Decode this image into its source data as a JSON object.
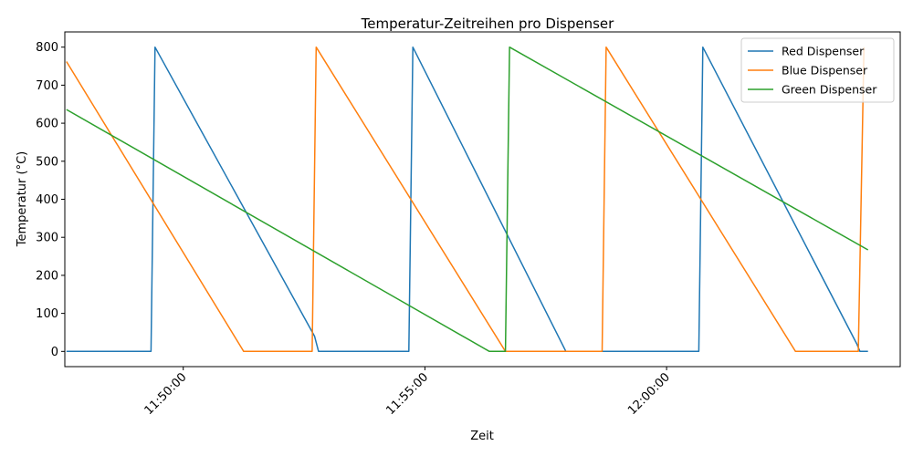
{
  "chart_data": {
    "type": "line",
    "title": "Temperatur-Zeitreihen pro Dispenser",
    "xlabel": "Zeit",
    "ylabel": "Temperatur (°C)",
    "xlim": [
      "11:47:33",
      "12:04:50"
    ],
    "ylim": [
      -40,
      840
    ],
    "x_ticks": [
      "11:50:00",
      "11:55:00",
      "12:00:00"
    ],
    "y_ticks": [
      0,
      100,
      200,
      300,
      400,
      500,
      600,
      700,
      800
    ],
    "grid": false,
    "legend_position": "top-right",
    "series": [
      {
        "name": "Red Dispenser",
        "color": "#1f77b4",
        "points": [
          [
            "11:47:35",
            0
          ],
          [
            "11:49:20",
            0
          ],
          [
            "11:49:25",
            800
          ],
          [
            "11:52:43",
            40
          ],
          [
            "11:52:48",
            0
          ],
          [
            "11:54:40",
            0
          ],
          [
            "11:54:45",
            800
          ],
          [
            "11:57:55",
            0
          ],
          [
            "12:00:40",
            0
          ],
          [
            "12:00:45",
            800
          ],
          [
            "12:03:56",
            20
          ],
          [
            "12:04:00",
            0
          ],
          [
            "12:04:10",
            0
          ]
        ]
      },
      {
        "name": "Blue Dispenser",
        "color": "#ff7f0e",
        "points": [
          [
            "11:47:35",
            762
          ],
          [
            "11:51:15",
            0
          ],
          [
            "11:52:40",
            0
          ],
          [
            "11:52:45",
            800
          ],
          [
            "11:56:40",
            0
          ],
          [
            "11:58:40",
            0
          ],
          [
            "11:58:45",
            800
          ],
          [
            "12:02:40",
            0
          ],
          [
            "12:03:58",
            0
          ],
          [
            "12:04:05",
            800
          ]
        ]
      },
      {
        "name": "Green Dispenser",
        "color": "#2ca02c",
        "points": [
          [
            "11:47:35",
            636
          ],
          [
            "11:56:20",
            0
          ],
          [
            "11:56:40",
            0
          ],
          [
            "11:56:45",
            800
          ],
          [
            "12:04:10",
            267
          ]
        ]
      }
    ]
  }
}
